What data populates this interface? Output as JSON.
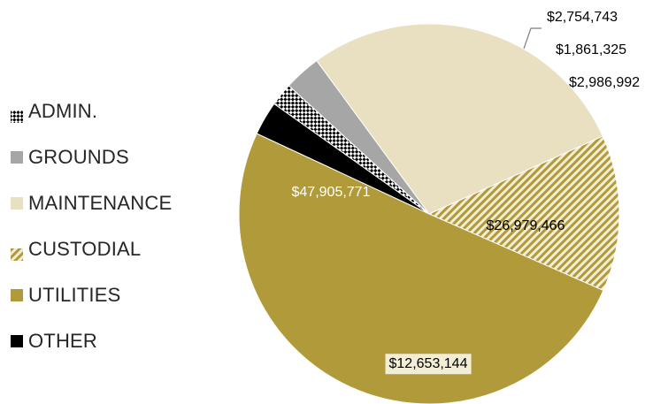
{
  "chart_data": {
    "type": "pie",
    "legend_position": "left",
    "legend": [
      "ADMIN.",
      "GROUNDS",
      "MAINTENANCE",
      "CUSTODIAL",
      "UTILITIES",
      "OTHER"
    ],
    "slices": [
      {
        "name": "OTHER",
        "value": 2754743,
        "label": "$2,754,743",
        "color": "#000000",
        "pattern": "solid"
      },
      {
        "name": "ADMIN.",
        "value": 1861325,
        "label": "$1,861,325",
        "color": "#000000",
        "pattern": "checker"
      },
      {
        "name": "GROUNDS",
        "value": 2986992,
        "label": "$2,986,992",
        "color": "#a6a6a6",
        "pattern": "solid"
      },
      {
        "name": "MAINTENANCE",
        "value": 26979466,
        "label": "$26,979,466",
        "color": "#e8e0c0",
        "pattern": "solid"
      },
      {
        "name": "CUSTODIAL",
        "value": 12653144,
        "label": "$12,653,144",
        "color": "#b19a3a",
        "pattern": "diagonal"
      },
      {
        "name": "UTILITIES",
        "value": 47905771,
        "label": "$47,905,771",
        "color": "#b19a3a",
        "pattern": "solid"
      }
    ]
  }
}
